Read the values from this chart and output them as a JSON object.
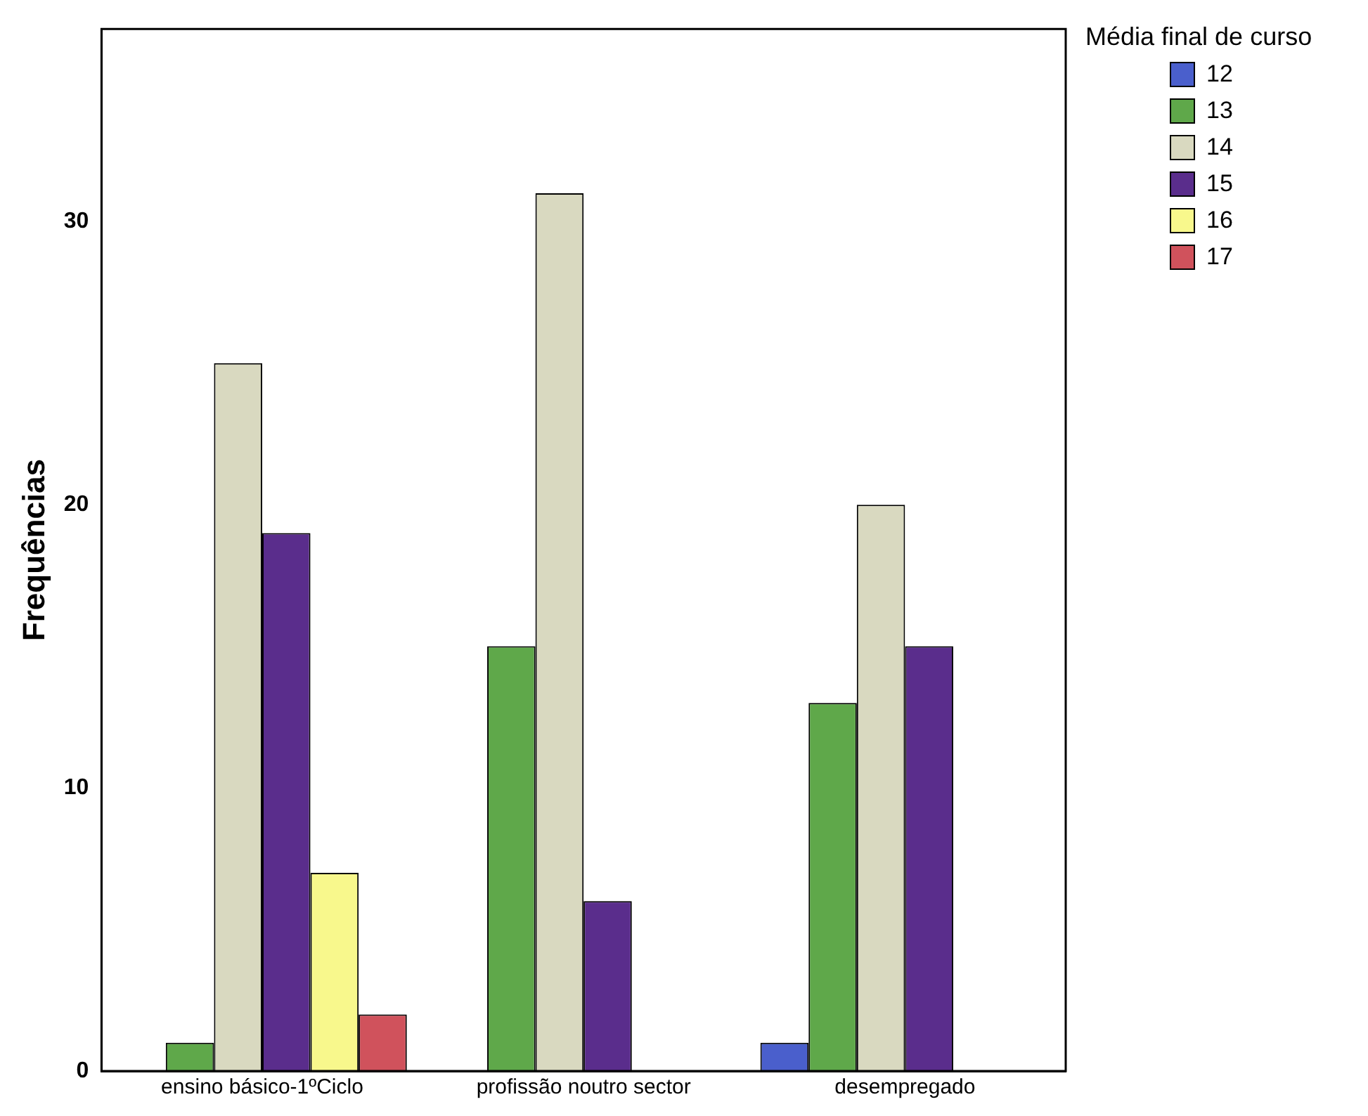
{
  "chart_data": {
    "type": "bar",
    "ylabel": "Frequências",
    "legend_title": "Média final de curso",
    "categories": [
      "ensino básico-1ºCiclo",
      "profissão noutro sector",
      "desempregado"
    ],
    "series": [
      {
        "name": "12",
        "color": "#4a5fcc",
        "values": [
          null,
          null,
          1
        ]
      },
      {
        "name": "13",
        "color": "#5fa84a",
        "values": [
          1,
          15,
          13
        ]
      },
      {
        "name": "14",
        "color": "#d9d9c0",
        "values": [
          25,
          31,
          20
        ]
      },
      {
        "name": "15",
        "color": "#5a2d8c",
        "values": [
          19,
          6,
          15
        ]
      },
      {
        "name": "16",
        "color": "#f8f88c",
        "values": [
          7,
          null,
          null
        ]
      },
      {
        "name": "17",
        "color": "#d0525c",
        "values": [
          2,
          null,
          null
        ]
      }
    ],
    "ylim": [
      0,
      36.8
    ],
    "yticks": [
      0,
      10,
      20,
      30
    ],
    "grid": false,
    "legend": "top right"
  }
}
